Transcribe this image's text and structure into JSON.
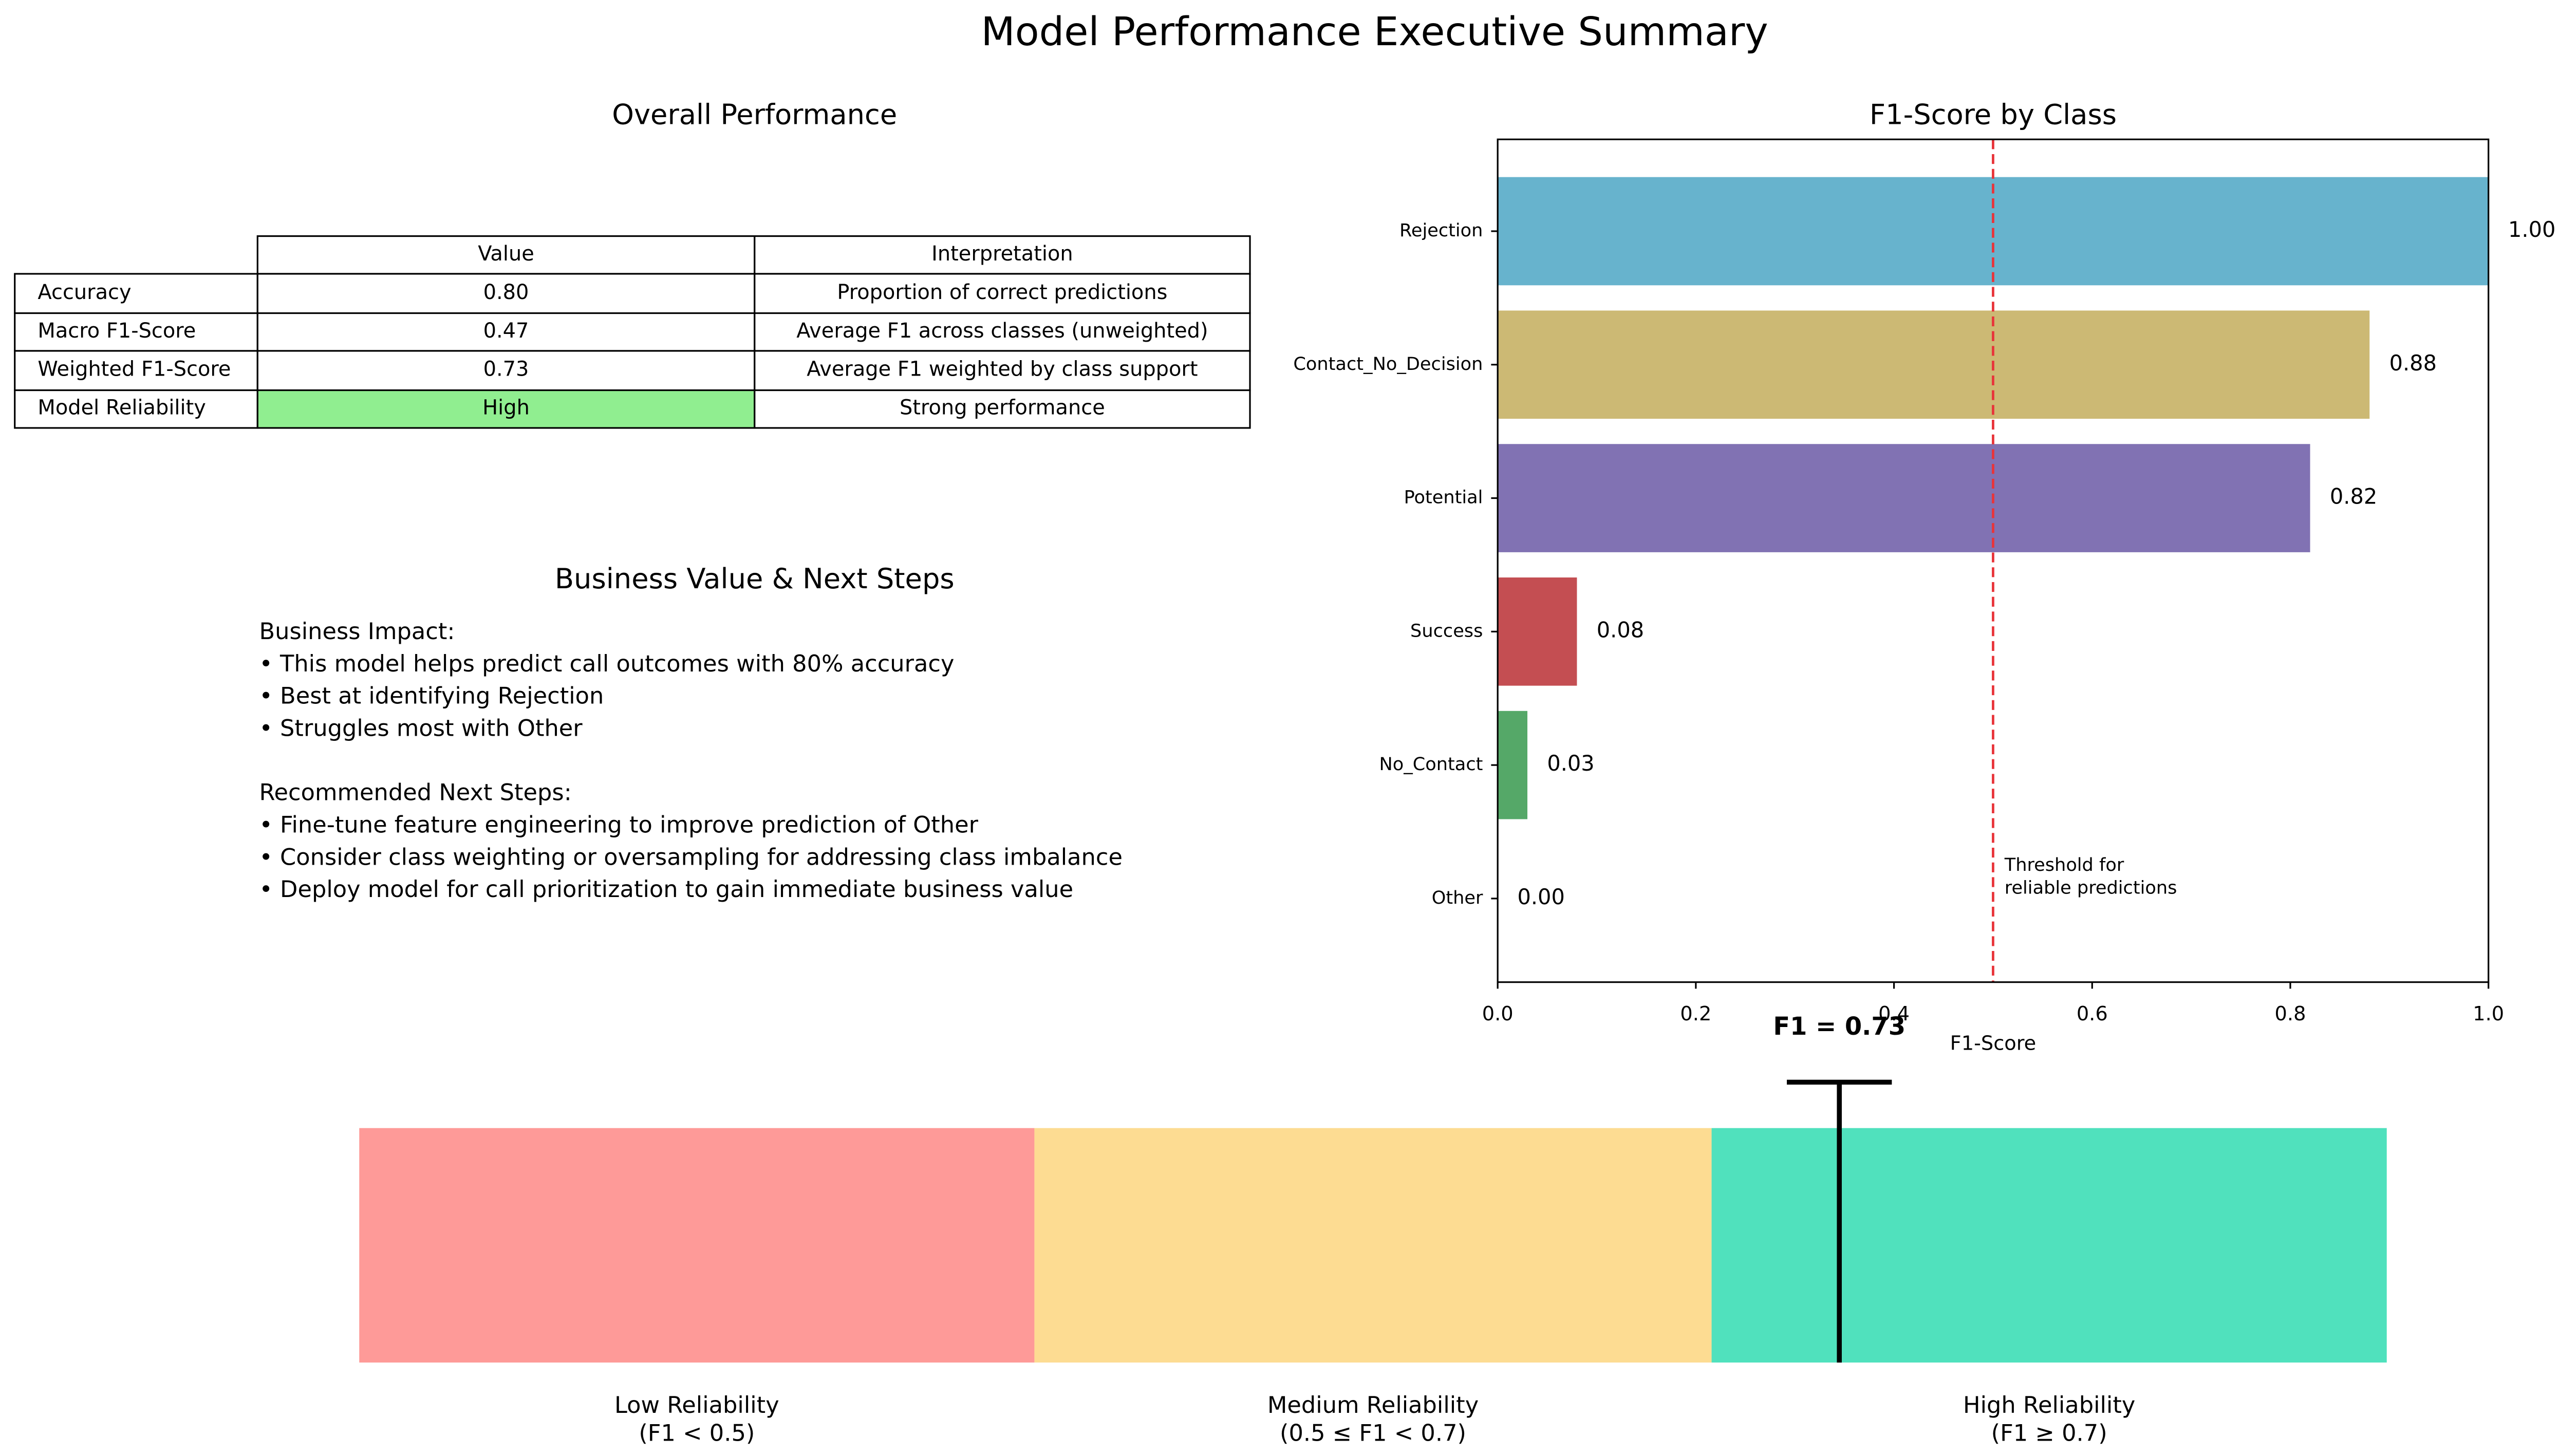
{
  "title": "Model Performance Executive Summary",
  "overview": {
    "title": "Overall Performance",
    "table": {
      "header": [
        "Value",
        "Interpretation"
      ],
      "rows": [
        [
          "Accuracy",
          "0.80",
          "Proportion of correct predictions"
        ],
        [
          "Macro F1-Score",
          "0.47",
          "Average F1 across classes (unweighted)"
        ],
        [
          "Weighted F1-Score",
          "0.73",
          "Average F1 weighted by class support"
        ],
        [
          "Model Reliability",
          "High",
          "Strong performance"
        ]
      ]
    }
  },
  "business": {
    "title": "Business Value & Next Steps",
    "sections": [
      {
        "heading": "Business Impact:",
        "items": [
          "• This model helps predict call outcomes with 80% accuracy",
          "• Best at identifying Rejection",
          "• Struggles most with Other"
        ]
      },
      {
        "heading": "Recommended Next Steps:",
        "items": [
          "• Fine-tune feature engineering to improve prediction of Other",
          "• Consider class weighting or oversampling for addressing class imbalance",
          "• Deploy model for call prioritization to gain immediate business value"
        ]
      }
    ]
  },
  "chart_data": [
    {
      "type": "hbar",
      "title": "F1-Score by Class",
      "x_label": "F1-Score",
      "categories": [
        "Rejection",
        "Contact_No_Decision",
        "Potential",
        "Success",
        "No_Contact",
        "Other"
      ],
      "values": [
        1.0,
        0.88,
        0.82,
        0.08,
        0.03,
        0.0
      ],
      "value_labels": [
        "1.00",
        "0.88",
        "0.82",
        "0.08",
        "0.03",
        "0.00"
      ],
      "colors": [
        "#67b3cd",
        "#ccb974",
        "#8172b3",
        "#c44e52",
        "#55a868",
        "#4c72b0"
      ],
      "xlim": [
        0,
        1
      ],
      "xticks": [
        {
          "value": 0,
          "label": "0.0"
        },
        0.2,
        0.4,
        0.6,
        0.8,
        {
          "value": 1,
          "label": "1.0"
        }
      ],
      "threshold": {
        "value": 0.5,
        "color": "#e8343a",
        "label_lines": [
          "Threshold for",
          "reliable predictions"
        ]
      }
    },
    {
      "type": "gauge",
      "xlim": [
        0,
        1
      ],
      "segments": [
        {
          "start": 0,
          "end": 0.333,
          "color": "#fe9a98",
          "name": "Low Reliability",
          "range_label": "(F1 < 0.5)"
        },
        {
          "start": 0.333,
          "end": 0.667,
          "color": "#fddc92",
          "name": "Medium Reliability",
          "range_label": "(0.5 ≤ F1 < 0.7)"
        },
        {
          "start": 0.667,
          "end": 1,
          "color": "#50e1bd",
          "name": "High Reliability",
          "range_label": "(F1 ≥ 0.7)"
        }
      ],
      "value": 0.73,
      "value_label": "F1 = 0.73"
    }
  ]
}
